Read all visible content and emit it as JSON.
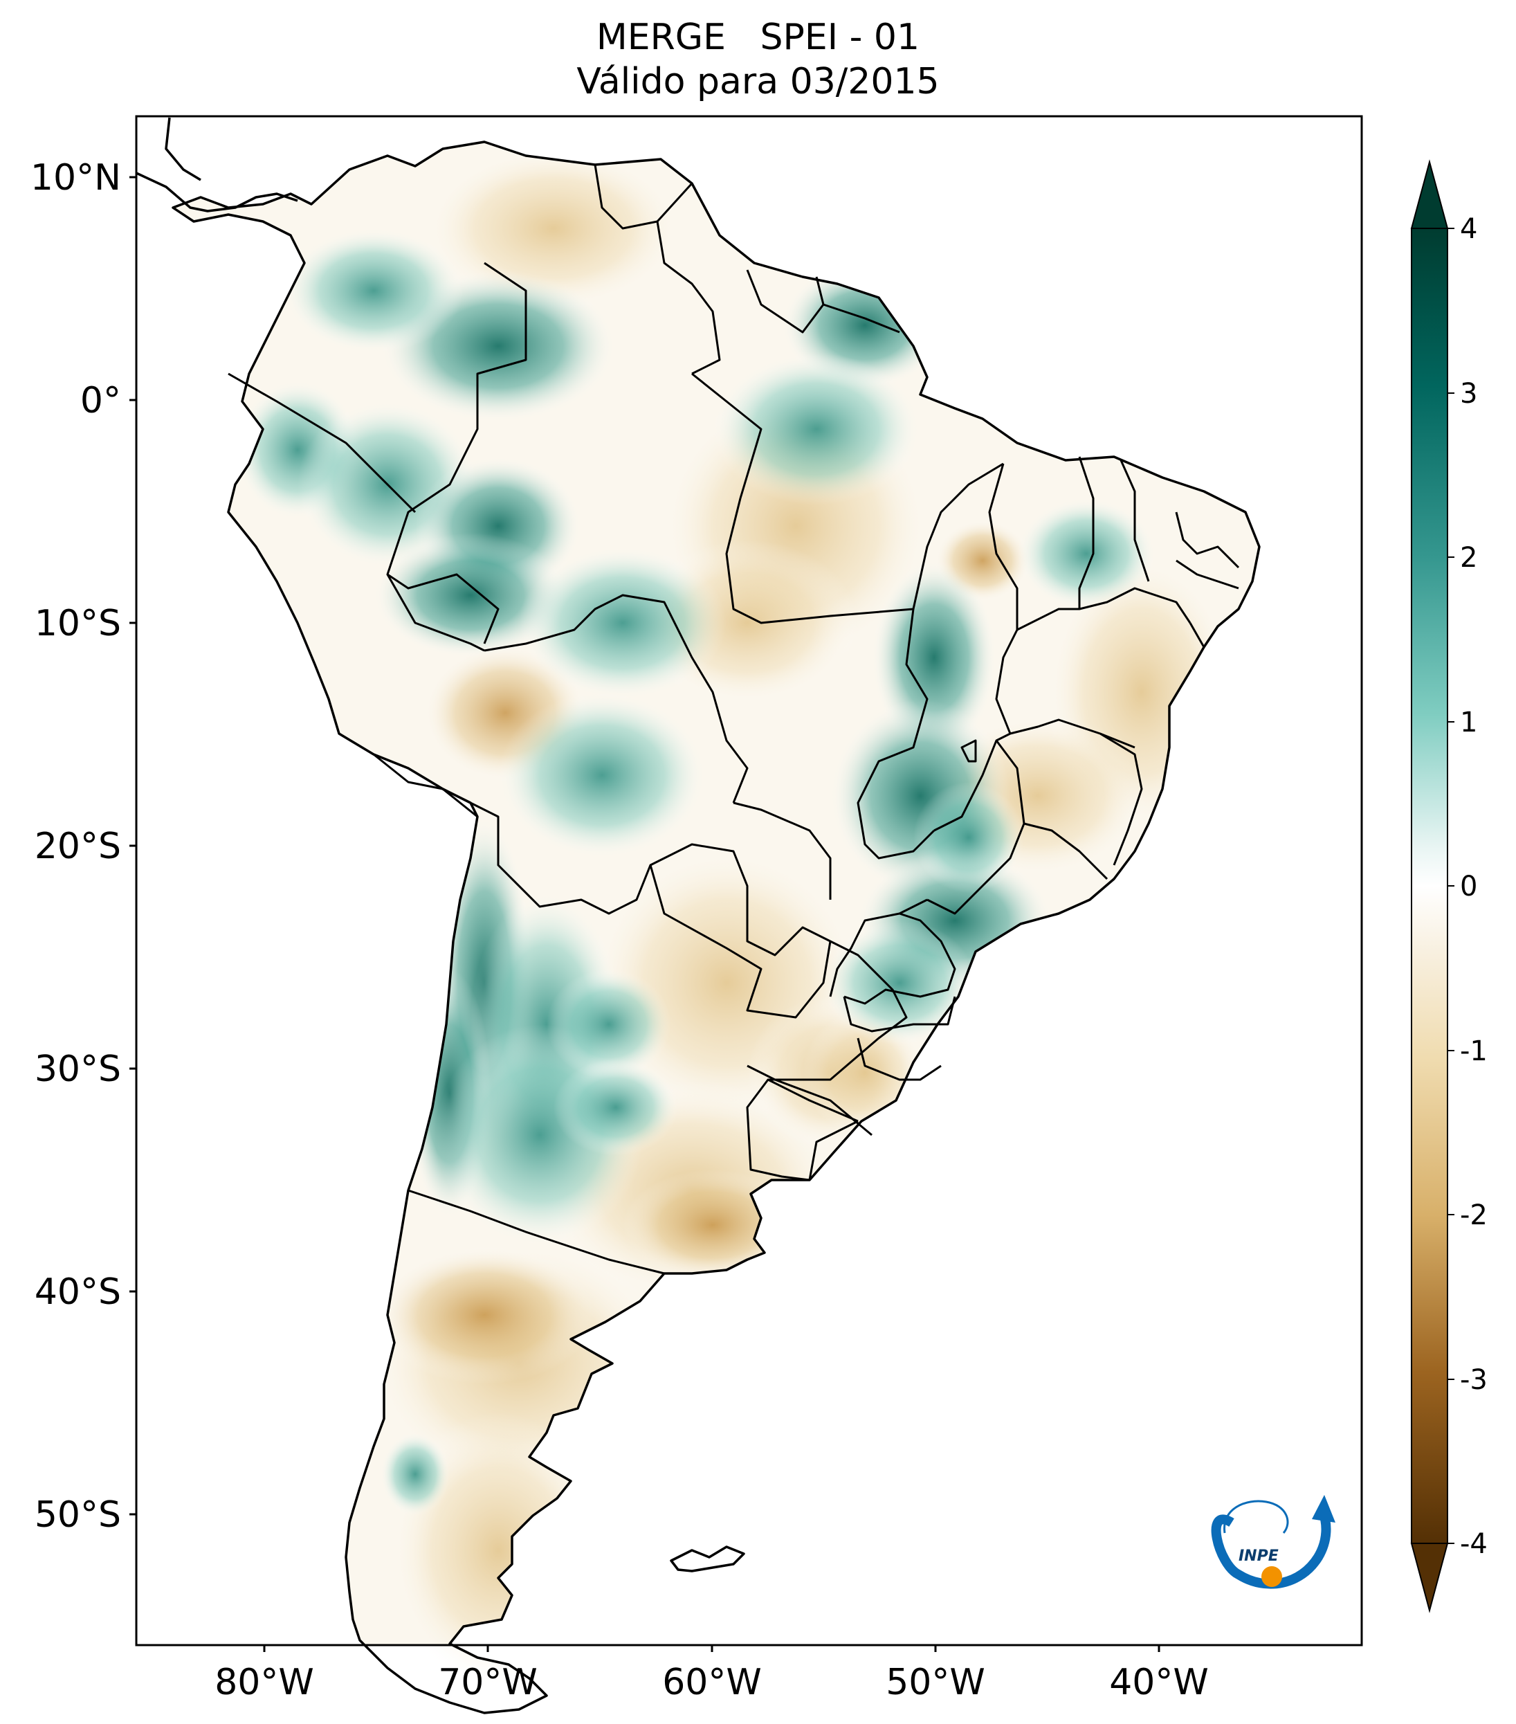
{
  "title": {
    "line1": "MERGE   SPEI - 01",
    "line2": "Válido para 03/2015"
  },
  "axes": {
    "lat_labels": [
      "10°N",
      "0°",
      "10°S",
      "20°S",
      "30°S",
      "40°S",
      "50°S"
    ],
    "lon_labels": [
      "80°W",
      "70°W",
      "60°W",
      "50°W",
      "40°W"
    ]
  },
  "colorbar": {
    "labels": [
      "4",
      "3",
      "2",
      "1",
      "0",
      "-1",
      "-2",
      "-3",
      "-4"
    ],
    "colors": [
      "#003c30",
      "#01665e",
      "#35978f",
      "#80cdc1",
      "#c7eae5",
      "#f5f5f5",
      "#f6e8c3",
      "#dfc27d",
      "#bf812d",
      "#8c510a",
      "#543005"
    ]
  },
  "logo": {
    "text": "INPE",
    "colors": [
      "#0b6cb8",
      "#f39200"
    ]
  }
}
